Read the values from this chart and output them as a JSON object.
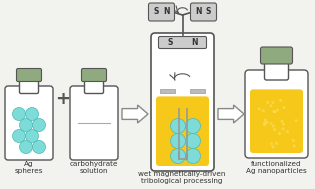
{
  "bg_color": "#f2f2ee",
  "bottle_outline": "#555555",
  "bottle_fill": "#ffffff",
  "cap_color": "#8faa7e",
  "cap_outline": "#666666",
  "ag_sphere_color": "#7edcd8",
  "ag_sphere_edge": "#4bb8b4",
  "yellow_liquid": "#f5c819",
  "magnet_fill": "#cccccc",
  "magnet_outline": "#555555",
  "magnet_text": "#333333",
  "arrow_fill": "#ffffff",
  "arrow_edge": "#888888",
  "rod_color": "#999999",
  "shelf_color": "#bbbbbb",
  "text_color": "#333333",
  "plus_color": "#555555",
  "label1": "Ag\nspheres",
  "label2": "carbohydrate\nsolution",
  "label3": "wet magnetically-driven\ntribological processing",
  "label4": "functionalized\nAg nanoparticles",
  "font_size": 5.2
}
